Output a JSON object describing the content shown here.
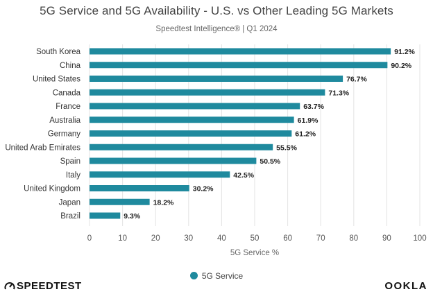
{
  "title": "5G Service and 5G Availability - U.S. vs Other Leading 5G Markets",
  "subtitle": "Speedtest Intelligence® | Q1 2024",
  "brand_left": "SPEEDTEST",
  "brand_right": "OOKLA",
  "colors": {
    "bar": "#1f8a9e",
    "grid": "#e3e3e3"
  },
  "chart_data": {
    "type": "bar",
    "orientation": "horizontal",
    "categories": [
      "South Korea",
      "China",
      "United States",
      "Canada",
      "France",
      "Australia",
      "Germany",
      "United Arab Emirates",
      "Spain",
      "Italy",
      "United Kingdom",
      "Japan",
      "Brazil"
    ],
    "series": [
      {
        "name": "5G Service",
        "values": [
          91.2,
          90.2,
          76.7,
          71.3,
          63.7,
          61.9,
          61.2,
          55.5,
          50.5,
          42.5,
          30.2,
          18.2,
          9.3
        ]
      }
    ],
    "data_labels": [
      "91.2%",
      "90.2%",
      "76.7%",
      "71.3%",
      "63.7%",
      "61.9%",
      "61.2%",
      "55.5%",
      "50.5%",
      "42.5%",
      "30.2%",
      "18.2%",
      "9.3%"
    ],
    "xlabel": "5G Service %",
    "xlim": [
      0,
      100
    ],
    "xticks": [
      0,
      10,
      20,
      30,
      40,
      50,
      60,
      70,
      80,
      90,
      100
    ],
    "grid": true,
    "legend_position": "bottom"
  }
}
